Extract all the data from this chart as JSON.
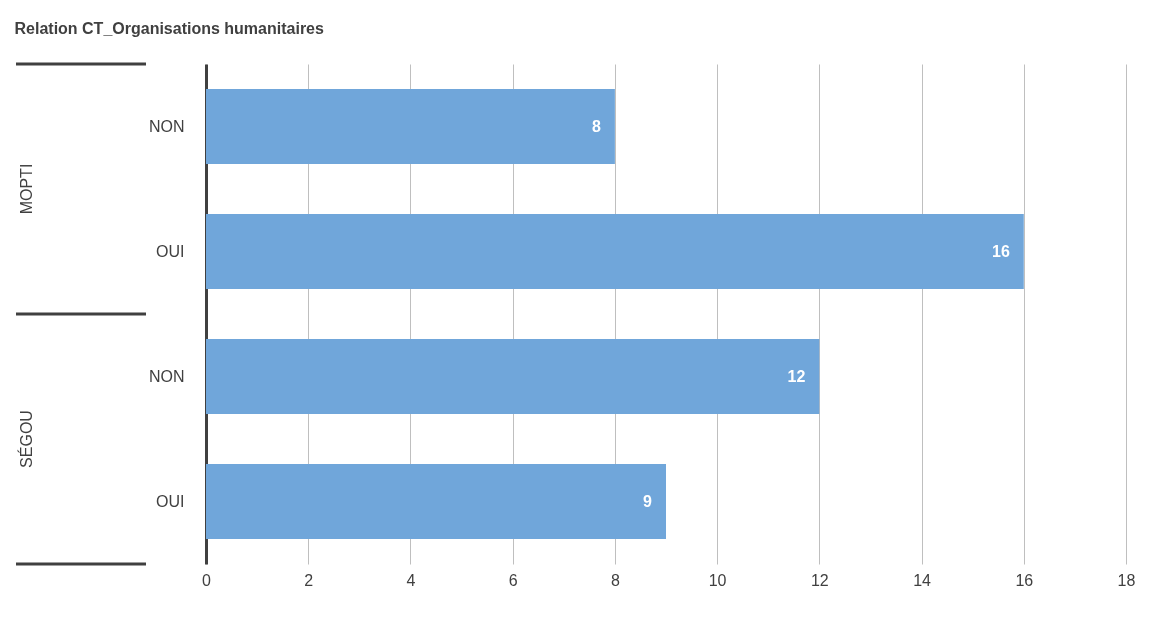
{
  "chart_data": {
    "type": "bar",
    "orientation": "horizontal",
    "title": "Relation CT_Organisations humanitaires",
    "categories": [
      "NON",
      "OUI",
      "NON",
      "OUI"
    ],
    "values": [
      8,
      16,
      12,
      9
    ],
    "color": "#70a6da",
    "annotations": [
      "MOPTI",
      "SÉGOU"
    ],
    "xlim": [
      0,
      18
    ],
    "xticks": [
      0,
      2,
      4,
      6,
      8,
      10,
      12,
      14,
      16,
      18
    ],
    "grid": "x",
    "data_labels": true
  }
}
